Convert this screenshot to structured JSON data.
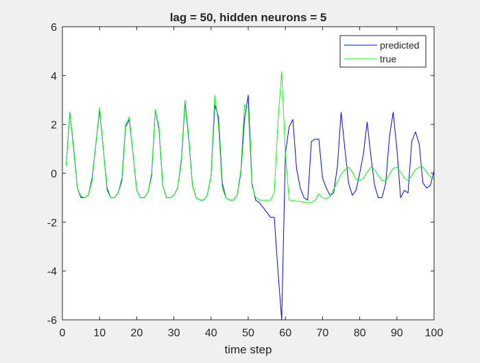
{
  "chart_data": {
    "type": "line",
    "title": "lag = 50, hidden neurons = 5",
    "xlabel": "time step",
    "ylabel": "",
    "xlim": [
      0,
      100
    ],
    "ylim": [
      -6,
      6
    ],
    "xticks": [
      "0",
      "10",
      "20",
      "30",
      "40",
      "50",
      "60",
      "70",
      "80",
      "90",
      "100"
    ],
    "yticks": [
      "-6",
      "-4",
      "-2",
      "0",
      "2",
      "4",
      "6"
    ],
    "grid": false,
    "legend_position": "top-right",
    "series": [
      {
        "name": "predicted",
        "color": "#0000ff",
        "x": [
          1,
          2,
          3,
          4,
          5,
          6,
          7,
          8,
          9,
          10,
          11,
          12,
          13,
          14,
          15,
          16,
          17,
          18,
          19,
          20,
          21,
          22,
          23,
          24,
          25,
          26,
          27,
          28,
          29,
          30,
          31,
          32,
          33,
          34,
          35,
          36,
          37,
          38,
          39,
          40,
          41,
          42,
          43,
          44,
          45,
          46,
          47,
          48,
          49,
          50,
          51,
          52,
          53,
          54,
          55,
          56,
          57,
          58,
          59,
          60,
          61,
          62,
          63,
          64,
          65,
          66,
          67,
          68,
          69,
          70,
          71,
          72,
          73,
          74,
          75,
          76,
          77,
          78,
          79,
          80,
          81,
          82,
          83,
          84,
          85,
          86,
          87,
          88,
          89,
          90,
          91,
          92,
          93,
          94,
          95,
          96,
          97,
          98,
          99,
          100
        ],
        "y": [
          0.3,
          2.5,
          1.1,
          -0.6,
          -1.0,
          -1.0,
          -0.9,
          -0.2,
          1.2,
          2.6,
          1.0,
          -0.6,
          -1.0,
          -1.0,
          -0.8,
          -0.3,
          1.9,
          2.2,
          0.8,
          -0.7,
          -1.0,
          -1.0,
          -0.8,
          -0.1,
          2.6,
          1.8,
          -0.5,
          -1.0,
          -1.0,
          -0.9,
          -0.6,
          0.5,
          2.9,
          1.4,
          -0.5,
          -1.0,
          -1.1,
          -1.1,
          -0.9,
          -0.1,
          2.8,
          2.3,
          -0.4,
          -1.0,
          -1.1,
          -1.1,
          -0.9,
          0.0,
          2.2,
          3.2,
          -0.4,
          -1.1,
          -1.2,
          -1.4,
          -1.6,
          -1.8,
          -1.8,
          -4.0,
          -6.0,
          0.8,
          1.9,
          2.2,
          0.2,
          -0.6,
          -1.0,
          -1.1,
          1.3,
          1.4,
          1.4,
          -0.2,
          -0.6,
          -0.9,
          -0.8,
          0.3,
          2.5,
          1.0,
          -0.4,
          -0.9,
          -0.7,
          0.0,
          0.8,
          2.1,
          0.7,
          -0.5,
          -1.0,
          -1.0,
          -0.4,
          1.5,
          2.5,
          1.0,
          -1.0,
          -0.7,
          -0.8,
          1.3,
          1.7,
          1.2,
          -0.4,
          -0.6,
          -0.5,
          0.1
        ]
      },
      {
        "name": "true",
        "color": "#00ff00",
        "x": [
          1,
          2,
          3,
          4,
          5,
          6,
          7,
          8,
          9,
          10,
          11,
          12,
          13,
          14,
          15,
          16,
          17,
          18,
          19,
          20,
          21,
          22,
          23,
          24,
          25,
          26,
          27,
          28,
          29,
          30,
          31,
          32,
          33,
          34,
          35,
          36,
          37,
          38,
          39,
          40,
          41,
          42,
          43,
          44,
          45,
          46,
          47,
          48,
          49,
          50,
          51,
          52,
          53,
          54,
          55,
          56,
          57,
          58,
          59,
          60,
          61,
          62,
          63,
          64,
          65,
          66,
          67,
          68,
          69,
          70,
          71,
          72,
          73,
          74,
          75,
          76,
          77,
          78,
          79,
          80,
          81,
          82,
          83,
          84,
          85,
          86,
          87,
          88,
          89,
          90,
          91,
          92,
          93,
          94,
          95,
          96,
          97,
          98,
          99,
          100
        ],
        "y": [
          0.3,
          2.5,
          1.0,
          -0.6,
          -0.95,
          -1.0,
          -0.9,
          -0.3,
          1.2,
          2.7,
          1.0,
          -0.7,
          -1.0,
          -1.0,
          -0.8,
          -0.2,
          2.0,
          2.3,
          0.8,
          -0.7,
          -1.0,
          -1.0,
          -0.8,
          0.0,
          2.6,
          1.9,
          -0.5,
          -1.0,
          -1.0,
          -0.9,
          -0.6,
          0.6,
          3.0,
          1.5,
          -0.5,
          -1.0,
          -1.1,
          -1.1,
          -0.9,
          -0.1,
          3.2,
          2.0,
          -0.6,
          -1.0,
          -1.1,
          -1.1,
          -0.9,
          0.1,
          2.8,
          2.7,
          -0.5,
          -1.0,
          -1.1,
          -1.1,
          -1.1,
          -1.1,
          -0.8,
          2.1,
          4.15,
          0.8,
          -1.1,
          -1.1,
          -1.15,
          -1.15,
          -1.2,
          -1.2,
          -1.2,
          -1.1,
          -0.85,
          -1.0,
          -1.05,
          -0.95,
          -0.65,
          -0.35,
          -0.05,
          0.15,
          0.25,
          0.05,
          -0.25,
          -0.3,
          -0.2,
          0.05,
          0.25,
          0.15,
          -0.1,
          -0.3,
          -0.3,
          -0.05,
          0.2,
          0.25,
          0.05,
          -0.2,
          -0.3,
          -0.1,
          0.15,
          0.25,
          0.25,
          0.05,
          -0.15,
          -0.25
        ]
      }
    ]
  }
}
